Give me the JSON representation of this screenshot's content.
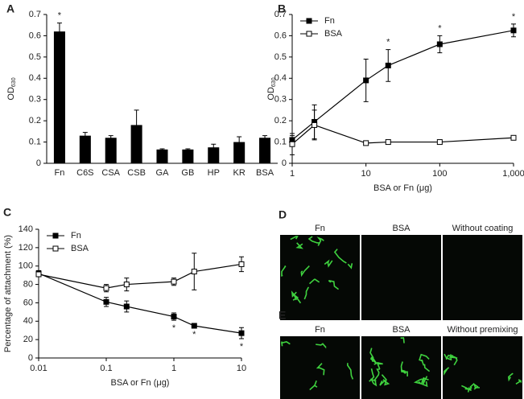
{
  "chart_data": [
    {
      "type": "bar",
      "panel": "A",
      "y_label": {
        "text": "OD",
        "subscript": "630"
      },
      "categories": [
        "Fn",
        "C6S",
        "CSA",
        "CSB",
        "GA",
        "GB",
        "HP",
        "KR",
        "BSA"
      ],
      "values": [
        0.62,
        0.13,
        0.12,
        0.18,
        0.065,
        0.065,
        0.075,
        0.1,
        0.12
      ],
      "errors": [
        0.04,
        0.015,
        0.01,
        0.07,
        0.003,
        0.003,
        0.015,
        0.025,
        0.01
      ],
      "color": "#000000",
      "ylim": [
        0,
        0.7
      ],
      "yticks": [
        0,
        0.1,
        0.2,
        0.3,
        0.4,
        0.5,
        0.6,
        0.7
      ],
      "annotations": [
        {
          "text": "*",
          "category": "Fn"
        }
      ]
    },
    {
      "type": "line",
      "panel": "B",
      "y_label": {
        "text": "OD",
        "subscript": "630"
      },
      "x_label": "BSA or Fn (μg)",
      "x": [
        1,
        2,
        10,
        20,
        100,
        1000
      ],
      "xscale": "log",
      "xlim": [
        1,
        1000
      ],
      "xticks": [
        1,
        10,
        100,
        {
          "value": 1000,
          "label": "1,000"
        }
      ],
      "ylim": [
        0,
        0.7
      ],
      "yticks": [
        0,
        0.1,
        0.2,
        0.3,
        0.4,
        0.5,
        0.6,
        0.7
      ],
      "legend": "upper left",
      "series": [
        {
          "name": "Fn",
          "color": "#000000",
          "filled": true,
          "values": [
            0.11,
            0.195,
            0.39,
            0.46,
            0.56,
            0.625
          ],
          "errors": [
            0.02,
            0.08,
            0.1,
            0.075,
            0.04,
            0.03
          ]
        },
        {
          "name": "BSA",
          "color": "#000000",
          "filled": false,
          "values": [
            0.09,
            0.18,
            0.095,
            0.1,
            0.1,
            0.12
          ],
          "errors": [
            0.05,
            0.07,
            0.005,
            0.005,
            0.005,
            0.005
          ]
        }
      ],
      "annotations": [
        {
          "text": "*",
          "x": 20,
          "series": "Fn",
          "side": "above"
        },
        {
          "text": "*",
          "x": 100,
          "series": "Fn",
          "side": "above"
        },
        {
          "text": "*",
          "x": 1000,
          "series": "Fn",
          "side": "above"
        }
      ]
    },
    {
      "type": "line",
      "panel": "C",
      "y_label": "Percentage of attachment (%)",
      "x_label": "BSA or Fn (μg)",
      "x": [
        0.01,
        0.1,
        0.2,
        1,
        2,
        10
      ],
      "xscale": "log",
      "xlim": [
        0.01,
        10
      ],
      "xticks": [
        0.01,
        0.1,
        1,
        10
      ],
      "ylim": [
        0,
        140
      ],
      "yticks": [
        0,
        20,
        40,
        60,
        80,
        100,
        120,
        140
      ],
      "legend": "upper left",
      "series": [
        {
          "name": "Fn",
          "color": "#000000",
          "filled": true,
          "values": [
            92,
            61,
            56,
            45,
            35,
            27
          ],
          "errors": [
            3,
            5,
            6,
            4,
            1,
            6
          ]
        },
        {
          "name": "BSA",
          "color": "#000000",
          "filled": false,
          "values": [
            91,
            76,
            80,
            83,
            94,
            102
          ],
          "errors": [
            2,
            4,
            7,
            4,
            20,
            8
          ]
        }
      ],
      "annotations": [
        {
          "text": "*",
          "x": 1,
          "series": "Fn",
          "side": "below"
        },
        {
          "text": "*",
          "x": 2,
          "series": "Fn",
          "side": "below"
        },
        {
          "text": "*",
          "x": 10,
          "series": "Fn",
          "side": "below"
        }
      ]
    }
  ],
  "images": [
    {
      "panel": "D",
      "captions": [
        "Fn",
        "BSA",
        "Without coating"
      ]
    },
    {
      "panel": "E",
      "captions": [
        "Fn",
        "BSA",
        "Without premixing"
      ]
    }
  ]
}
